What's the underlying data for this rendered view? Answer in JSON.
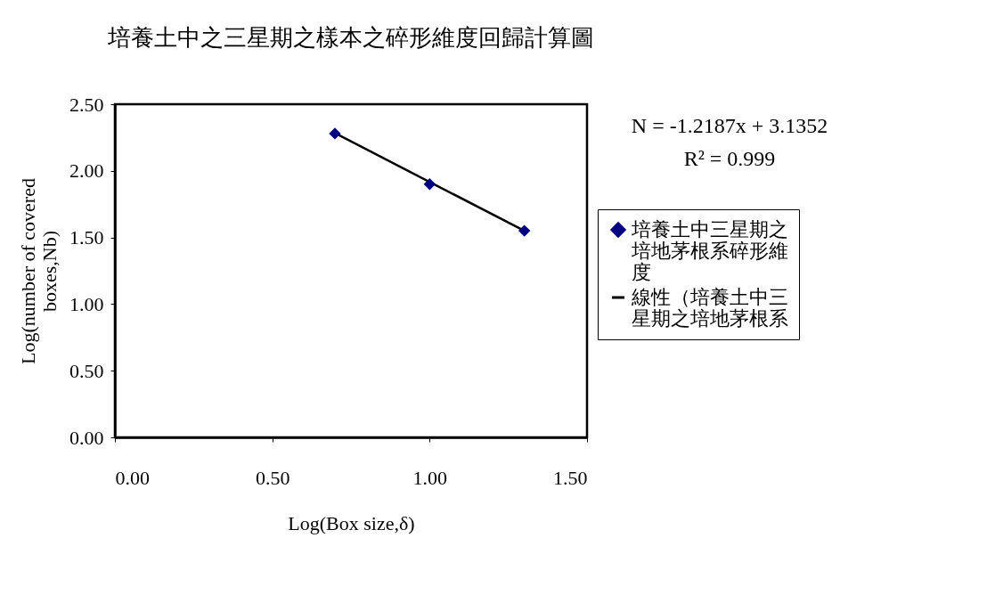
{
  "chart_data": {
    "type": "scatter",
    "title": "培養土中之三星期之樣本之碎形維度回歸計算圖",
    "xlabel": "Log(Box size,δ)",
    "ylabel": "Log(number of covered boxes,Nb)",
    "x": [
      0.699,
      1.0,
      1.301
    ],
    "series": [
      {
        "name": "培養土中三星期之培地茅根系碎形維度",
        "color": "#000080",
        "values": [
          2.28,
          1.9,
          1.55
        ],
        "marker": "diamond"
      },
      {
        "name": "線性（培養土中三星期之培地茅根系",
        "type": "line",
        "color": "#000000",
        "x": [
          0.699,
          1.301
        ],
        "values": [
          2.283,
          1.55
        ],
        "marker": "none"
      }
    ],
    "xlim": [
      0,
      1.5
    ],
    "xticks": [
      {
        "value": 0,
        "label": "0.00"
      },
      {
        "value": 0.5,
        "label": "0.50"
      },
      {
        "value": 1,
        "label": "1.00"
      },
      {
        "value": 1.5,
        "label": "1.50"
      }
    ],
    "ylim": [
      0,
      2.5
    ],
    "yticks": [
      {
        "value": 0,
        "label": "0.00"
      },
      {
        "value": 0.5,
        "label": "0.50"
      },
      {
        "value": 1,
        "label": "1.00"
      },
      {
        "value": 1.5,
        "label": "1.50"
      },
      {
        "value": 2,
        "label": "2.00"
      },
      {
        "value": 2.5,
        "label": "2.50"
      }
    ],
    "annotations": [
      "N = -1.2187x + 3.1352",
      "R² = 0.999"
    ],
    "grid": false,
    "legend": "right"
  }
}
